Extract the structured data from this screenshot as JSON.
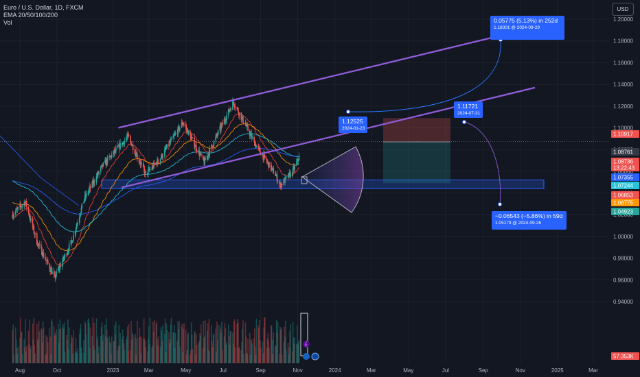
{
  "legend": {
    "symbol": "Euro / U.S. Dollar, 1D, FXCM",
    "ema": "EMA 20/50/100/200",
    "vol": "Vol"
  },
  "currency_button": "USD",
  "colors": {
    "background": "#131722",
    "up": "#26a69a",
    "down": "#ef5350",
    "channel": "#8e5bd6",
    "blue": "#2962ff",
    "ema20": "#f44336",
    "ema50": "#ff9800",
    "ema100": "#26c6da",
    "ema200": "#2962ff"
  },
  "chart_data": {
    "type": "candlestick",
    "y_axis": {
      "range": [
        0.925,
        1.205
      ],
      "ticks": [
        "1.20000",
        "1.18000",
        "1.16000",
        "1.14000",
        "1.12000",
        "1.10000",
        "1.08000",
        "1.06000",
        "1.04000",
        "1.02000",
        "1.00000",
        "0.98000",
        "0.96000",
        "0.94000"
      ]
    },
    "x_axis": {
      "ticks": [
        "Aug",
        "Oct",
        "2023",
        "Mar",
        "May",
        "Jul",
        "Sep",
        "Nov",
        "2024",
        "Mar",
        "May",
        "Jul",
        "Sep",
        "Nov",
        "2025",
        "Mar"
      ]
    },
    "price_path": [
      [
        "2022-07-20",
        1.02
      ],
      [
        "2022-08-10",
        1.032
      ],
      [
        "2022-08-29",
        0.995
      ],
      [
        "2022-09-27",
        0.962
      ],
      [
        "2022-10-25",
        0.995
      ],
      [
        "2022-11-15",
        1.035
      ],
      [
        "2022-12-15",
        1.065
      ],
      [
        "2023-01-26",
        1.092
      ],
      [
        "2023-02-24",
        1.057
      ],
      [
        "2023-03-20",
        1.072
      ],
      [
        "2023-04-26",
        1.105
      ],
      [
        "2023-05-31",
        1.068
      ],
      [
        "2023-06-21",
        1.093
      ],
      [
        "2023-07-18",
        1.124
      ],
      [
        "2023-08-24",
        1.084
      ],
      [
        "2023-09-25",
        1.057
      ],
      [
        "2023-10-03",
        1.047
      ],
      [
        "2023-10-24",
        1.06
      ],
      [
        "2023-11-03",
        1.073
      ]
    ],
    "indicators": [
      "EMA 20",
      "EMA 50",
      "EMA 100",
      "EMA 200",
      "Volume"
    ],
    "price_labels": [
      {
        "value": "1.10917",
        "color": "#ef5350"
      },
      {
        "value": "1.08761",
        "color": "#363a45"
      },
      {
        "value": "1.08736",
        "color": "#ef5350",
        "sub": "13:22:43"
      },
      {
        "value": "1.07355",
        "color": "#2962ff"
      },
      {
        "value": "1.07244",
        "color": "#26c6da"
      },
      {
        "value": "1.06853",
        "color": "#ef5350"
      },
      {
        "value": "1.06775",
        "color": "#ff9800"
      },
      {
        "value": "1.04923",
        "color": "#26a69a"
      },
      {
        "value": "57.353K",
        "color": "#ef5350"
      }
    ],
    "annotations": [
      {
        "line1": "0.05775 (5.13%) in 252d",
        "line2": "1.18301 @ 2024-09-29"
      },
      {
        "line1": "1.12525",
        "line2": "2024-01-23"
      },
      {
        "line1": "1.11721",
        "line2": "2024-07-31"
      },
      {
        "line1": "−0.06543 (−5.86%) in 59d",
        "line2": "1.05179 @ 2024-09-26"
      }
    ],
    "channel_upper": [
      [
        "2023-01-10",
        1.1
      ],
      [
        "2024-09-30",
        1.185
      ]
    ],
    "channel_lower": [
      [
        "2023-01-15",
        1.045
      ],
      [
        "2024-11-25",
        1.137
      ]
    ],
    "support_zone": [
      1.044,
      1.052
    ],
    "position_tool": {
      "stop": 1.109,
      "entry": 1.087,
      "target": 1.049
    }
  }
}
